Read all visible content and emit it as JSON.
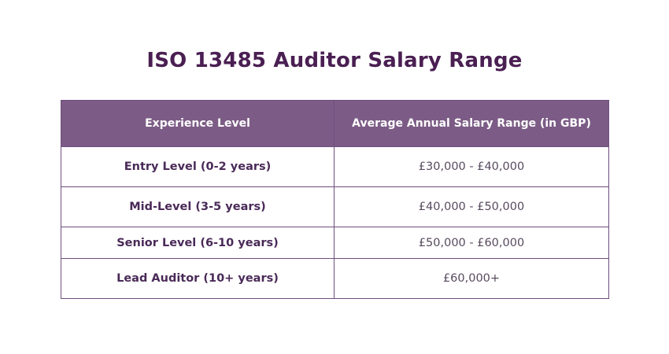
{
  "title": "ISO 13485 Auditor Salary Range",
  "table": {
    "headers": {
      "experience": "Experience Level",
      "salary": "Average Annual Salary Range (in GBP)"
    },
    "rows": [
      {
        "level": "Entry Level (0-2 years)",
        "range": "£30,000 - £40,000"
      },
      {
        "level": "Mid-Level (3-5 years)",
        "range": "£40,000 - £50,000"
      },
      {
        "level": "Senior Level (6-10 years)",
        "range": "£50,000 - £60,000"
      },
      {
        "level": "Lead Auditor (10+ years)",
        "range": "£60,000+"
      }
    ]
  },
  "colors": {
    "title": "#4a1f52",
    "header_bg": "#7c5c86",
    "border": "#6e4e7e"
  }
}
